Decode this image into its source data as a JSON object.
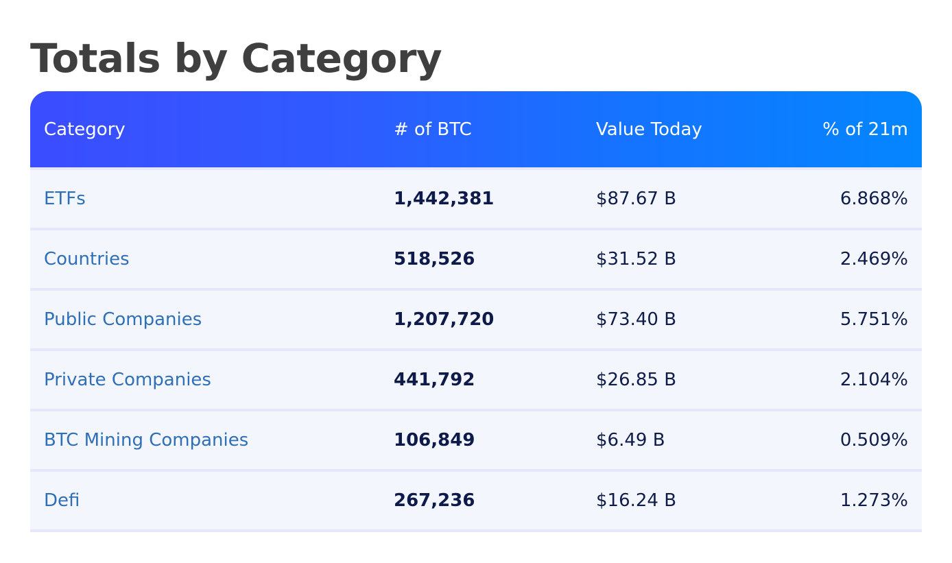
{
  "title": "Totals by Category",
  "table": {
    "headers": {
      "category": "Category",
      "btc": "# of BTC",
      "value": "Value Today",
      "percent": "% of 21m"
    },
    "rows": [
      {
        "category": "ETFs",
        "btc": "1,442,381",
        "value": "$87.67 B",
        "percent": "6.868%"
      },
      {
        "category": "Countries",
        "btc": "518,526",
        "value": "$31.52 B",
        "percent": "2.469%"
      },
      {
        "category": "Public Companies",
        "btc": "1,207,720",
        "value": "$73.40 B",
        "percent": "5.751%"
      },
      {
        "category": "Private Companies",
        "btc": "441,792",
        "value": "$26.85 B",
        "percent": "2.104%"
      },
      {
        "category": "BTC Mining Companies",
        "btc": "106,849",
        "value": "$6.49 B",
        "percent": "0.509%"
      },
      {
        "category": "Defi",
        "btc": "267,236",
        "value": "$16.24 B",
        "percent": "1.273%"
      }
    ]
  },
  "colors": {
    "title": "#3f3f3f",
    "header_gradient_start": "#3b4dff",
    "header_gradient_end": "#0486ff",
    "link": "#2f6fb7",
    "row_background": "#f3f6fd",
    "row_divider": "#e6e7fb",
    "text": "#101c4a"
  }
}
